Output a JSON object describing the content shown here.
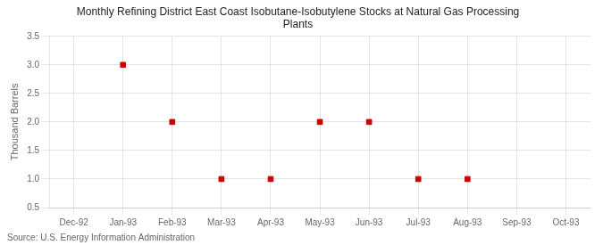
{
  "chart_data": {
    "type": "scatter",
    "title": "Monthly Refining District East Coast Isobutane-Isobutylene Stocks at Natural Gas Processing\nPlants",
    "ylabel": "Thousand Barrels",
    "annotation": "Source: U.S. Energy Information Administration",
    "categories": [
      "Dec-92",
      "Jan-93",
      "Feb-93",
      "Mar-93",
      "Apr-93",
      "May-93",
      "Jun-93",
      "Jul-93",
      "Aug-93",
      "Sep-93",
      "Oct-93"
    ],
    "values": [
      null,
      3.0,
      2.0,
      1.0,
      1.0,
      2.0,
      2.0,
      1.0,
      1.0,
      null,
      null
    ],
    "color": "#cc0000",
    "marker": "square",
    "ylim": [
      0.5,
      3.5
    ],
    "yticks": [
      0.5,
      {
        "value": 1.0,
        "label": "1.0"
      },
      1.5,
      {
        "value": 2.0,
        "label": "2.0"
      },
      2.5,
      {
        "value": 3.0,
        "label": "3.0"
      },
      3.5
    ],
    "grid": true
  }
}
